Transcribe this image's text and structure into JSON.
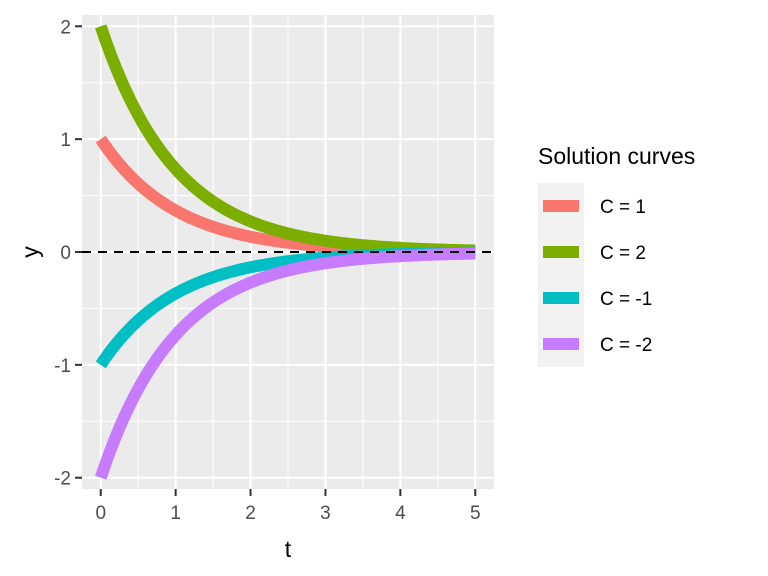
{
  "chart_data": {
    "type": "line",
    "xlabel": "t",
    "ylabel": "y",
    "xlim": [
      -0.25,
      5.25
    ],
    "ylim": [
      -2.1,
      2.1
    ],
    "x_ticks": [
      0,
      1,
      2,
      3,
      4,
      5
    ],
    "y_ticks": [
      -2,
      -1,
      0,
      1,
      2
    ],
    "grid": true,
    "reference_line": {
      "y": 0,
      "style": "dashed",
      "color": "#000000"
    },
    "legend": {
      "title": "Solution curves",
      "position": "right"
    },
    "series": [
      {
        "name": "C = 1",
        "C": 1,
        "color": "#F8766D",
        "x": [
          0,
          0.5,
          1,
          1.5,
          2,
          2.5,
          3,
          3.5,
          4,
          4.5,
          5
        ],
        "y": [
          1.0,
          0.55,
          0.37,
          0.23,
          0.14,
          0.08,
          0.05,
          0.03,
          0.02,
          0.01,
          0.01
        ]
      },
      {
        "name": "C = 2",
        "C": 2,
        "color": "#7CAE00",
        "x": [
          0,
          0.5,
          1,
          1.5,
          2,
          2.5,
          3,
          3.5,
          4,
          4.5,
          5
        ],
        "y": [
          2.0,
          1.21,
          0.74,
          0.45,
          0.27,
          0.16,
          0.1,
          0.06,
          0.04,
          0.02,
          0.01
        ]
      },
      {
        "name": "C = -1",
        "C": -1,
        "color": "#00BFC4",
        "x": [
          0,
          0.5,
          1,
          1.5,
          2,
          2.5,
          3,
          3.5,
          4,
          4.5,
          5
        ],
        "y": [
          -1.0,
          -0.55,
          -0.37,
          -0.23,
          -0.14,
          -0.08,
          -0.05,
          -0.03,
          -0.02,
          -0.01,
          -0.01
        ]
      },
      {
        "name": "C = -2",
        "C": -2,
        "color": "#C77CFF",
        "x": [
          0,
          0.5,
          1,
          1.5,
          2,
          2.5,
          3,
          3.5,
          4,
          4.5,
          5
        ],
        "y": [
          -2.0,
          -1.21,
          -0.74,
          -0.45,
          -0.27,
          -0.16,
          -0.1,
          -0.06,
          -0.04,
          -0.02,
          -0.01
        ]
      }
    ]
  }
}
